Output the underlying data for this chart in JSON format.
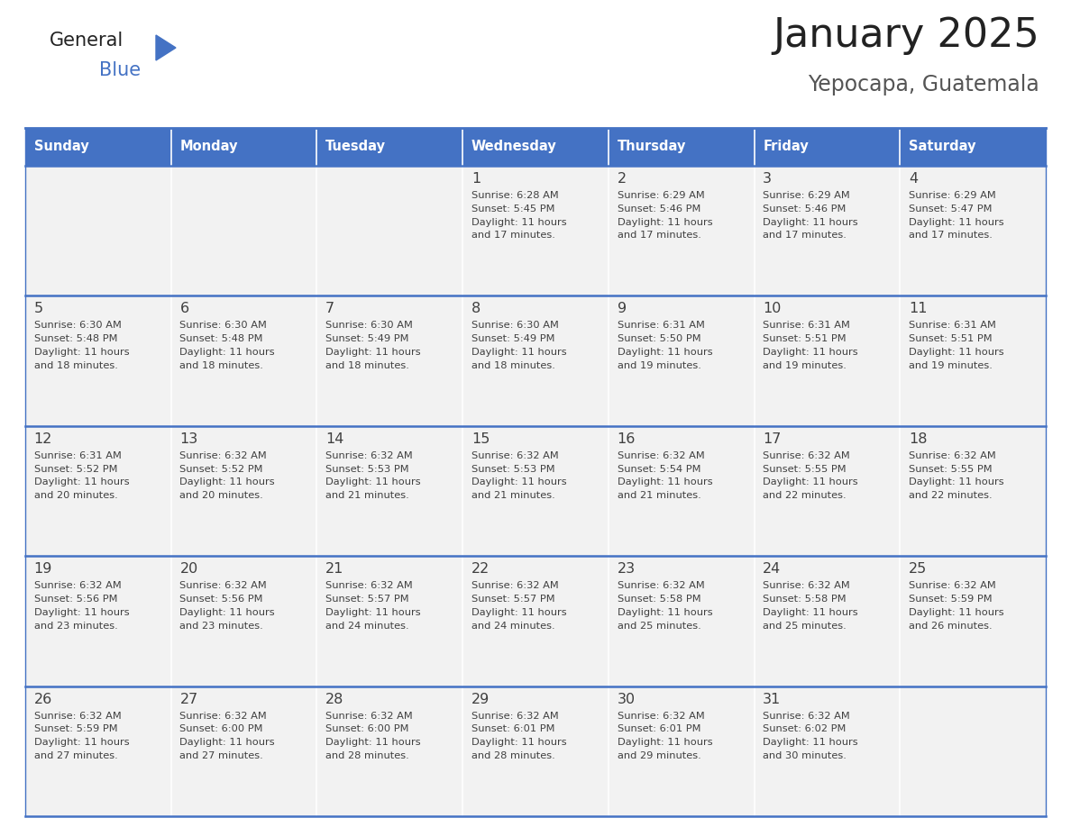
{
  "title": "January 2025",
  "subtitle": "Yepocapa, Guatemala",
  "days_of_week": [
    "Sunday",
    "Monday",
    "Tuesday",
    "Wednesday",
    "Thursday",
    "Friday",
    "Saturday"
  ],
  "header_bg": "#4472C4",
  "header_text_color": "#FFFFFF",
  "cell_bg_light": "#F2F2F2",
  "border_color": "#4472C4",
  "text_color": "#404040",
  "calendar": [
    [
      {
        "day": null,
        "sunrise": null,
        "sunset": null,
        "daylight_h": null,
        "daylight_m": null
      },
      {
        "day": null,
        "sunrise": null,
        "sunset": null,
        "daylight_h": null,
        "daylight_m": null
      },
      {
        "day": null,
        "sunrise": null,
        "sunset": null,
        "daylight_h": null,
        "daylight_m": null
      },
      {
        "day": 1,
        "sunrise": "6:28 AM",
        "sunset": "5:45 PM",
        "daylight_h": "11 hours",
        "daylight_m": "and 17 minutes."
      },
      {
        "day": 2,
        "sunrise": "6:29 AM",
        "sunset": "5:46 PM",
        "daylight_h": "11 hours",
        "daylight_m": "and 17 minutes."
      },
      {
        "day": 3,
        "sunrise": "6:29 AM",
        "sunset": "5:46 PM",
        "daylight_h": "11 hours",
        "daylight_m": "and 17 minutes."
      },
      {
        "day": 4,
        "sunrise": "6:29 AM",
        "sunset": "5:47 PM",
        "daylight_h": "11 hours",
        "daylight_m": "and 17 minutes."
      }
    ],
    [
      {
        "day": 5,
        "sunrise": "6:30 AM",
        "sunset": "5:48 PM",
        "daylight_h": "11 hours",
        "daylight_m": "and 18 minutes."
      },
      {
        "day": 6,
        "sunrise": "6:30 AM",
        "sunset": "5:48 PM",
        "daylight_h": "11 hours",
        "daylight_m": "and 18 minutes."
      },
      {
        "day": 7,
        "sunrise": "6:30 AM",
        "sunset": "5:49 PM",
        "daylight_h": "11 hours",
        "daylight_m": "and 18 minutes."
      },
      {
        "day": 8,
        "sunrise": "6:30 AM",
        "sunset": "5:49 PM",
        "daylight_h": "11 hours",
        "daylight_m": "and 18 minutes."
      },
      {
        "day": 9,
        "sunrise": "6:31 AM",
        "sunset": "5:50 PM",
        "daylight_h": "11 hours",
        "daylight_m": "and 19 minutes."
      },
      {
        "day": 10,
        "sunrise": "6:31 AM",
        "sunset": "5:51 PM",
        "daylight_h": "11 hours",
        "daylight_m": "and 19 minutes."
      },
      {
        "day": 11,
        "sunrise": "6:31 AM",
        "sunset": "5:51 PM",
        "daylight_h": "11 hours",
        "daylight_m": "and 19 minutes."
      }
    ],
    [
      {
        "day": 12,
        "sunrise": "6:31 AM",
        "sunset": "5:52 PM",
        "daylight_h": "11 hours",
        "daylight_m": "and 20 minutes."
      },
      {
        "day": 13,
        "sunrise": "6:32 AM",
        "sunset": "5:52 PM",
        "daylight_h": "11 hours",
        "daylight_m": "and 20 minutes."
      },
      {
        "day": 14,
        "sunrise": "6:32 AM",
        "sunset": "5:53 PM",
        "daylight_h": "11 hours",
        "daylight_m": "and 21 minutes."
      },
      {
        "day": 15,
        "sunrise": "6:32 AM",
        "sunset": "5:53 PM",
        "daylight_h": "11 hours",
        "daylight_m": "and 21 minutes."
      },
      {
        "day": 16,
        "sunrise": "6:32 AM",
        "sunset": "5:54 PM",
        "daylight_h": "11 hours",
        "daylight_m": "and 21 minutes."
      },
      {
        "day": 17,
        "sunrise": "6:32 AM",
        "sunset": "5:55 PM",
        "daylight_h": "11 hours",
        "daylight_m": "and 22 minutes."
      },
      {
        "day": 18,
        "sunrise": "6:32 AM",
        "sunset": "5:55 PM",
        "daylight_h": "11 hours",
        "daylight_m": "and 22 minutes."
      }
    ],
    [
      {
        "day": 19,
        "sunrise": "6:32 AM",
        "sunset": "5:56 PM",
        "daylight_h": "11 hours",
        "daylight_m": "and 23 minutes."
      },
      {
        "day": 20,
        "sunrise": "6:32 AM",
        "sunset": "5:56 PM",
        "daylight_h": "11 hours",
        "daylight_m": "and 23 minutes."
      },
      {
        "day": 21,
        "sunrise": "6:32 AM",
        "sunset": "5:57 PM",
        "daylight_h": "11 hours",
        "daylight_m": "and 24 minutes."
      },
      {
        "day": 22,
        "sunrise": "6:32 AM",
        "sunset": "5:57 PM",
        "daylight_h": "11 hours",
        "daylight_m": "and 24 minutes."
      },
      {
        "day": 23,
        "sunrise": "6:32 AM",
        "sunset": "5:58 PM",
        "daylight_h": "11 hours",
        "daylight_m": "and 25 minutes."
      },
      {
        "day": 24,
        "sunrise": "6:32 AM",
        "sunset": "5:58 PM",
        "daylight_h": "11 hours",
        "daylight_m": "and 25 minutes."
      },
      {
        "day": 25,
        "sunrise": "6:32 AM",
        "sunset": "5:59 PM",
        "daylight_h": "11 hours",
        "daylight_m": "and 26 minutes."
      }
    ],
    [
      {
        "day": 26,
        "sunrise": "6:32 AM",
        "sunset": "5:59 PM",
        "daylight_h": "11 hours",
        "daylight_m": "and 27 minutes."
      },
      {
        "day": 27,
        "sunrise": "6:32 AM",
        "sunset": "6:00 PM",
        "daylight_h": "11 hours",
        "daylight_m": "and 27 minutes."
      },
      {
        "day": 28,
        "sunrise": "6:32 AM",
        "sunset": "6:00 PM",
        "daylight_h": "11 hours",
        "daylight_m": "and 28 minutes."
      },
      {
        "day": 29,
        "sunrise": "6:32 AM",
        "sunset": "6:01 PM",
        "daylight_h": "11 hours",
        "daylight_m": "and 28 minutes."
      },
      {
        "day": 30,
        "sunrise": "6:32 AM",
        "sunset": "6:01 PM",
        "daylight_h": "11 hours",
        "daylight_m": "and 29 minutes."
      },
      {
        "day": 31,
        "sunrise": "6:32 AM",
        "sunset": "6:02 PM",
        "daylight_h": "11 hours",
        "daylight_m": "and 30 minutes."
      },
      {
        "day": null,
        "sunrise": null,
        "sunset": null,
        "daylight_h": null,
        "daylight_m": null
      }
    ]
  ]
}
